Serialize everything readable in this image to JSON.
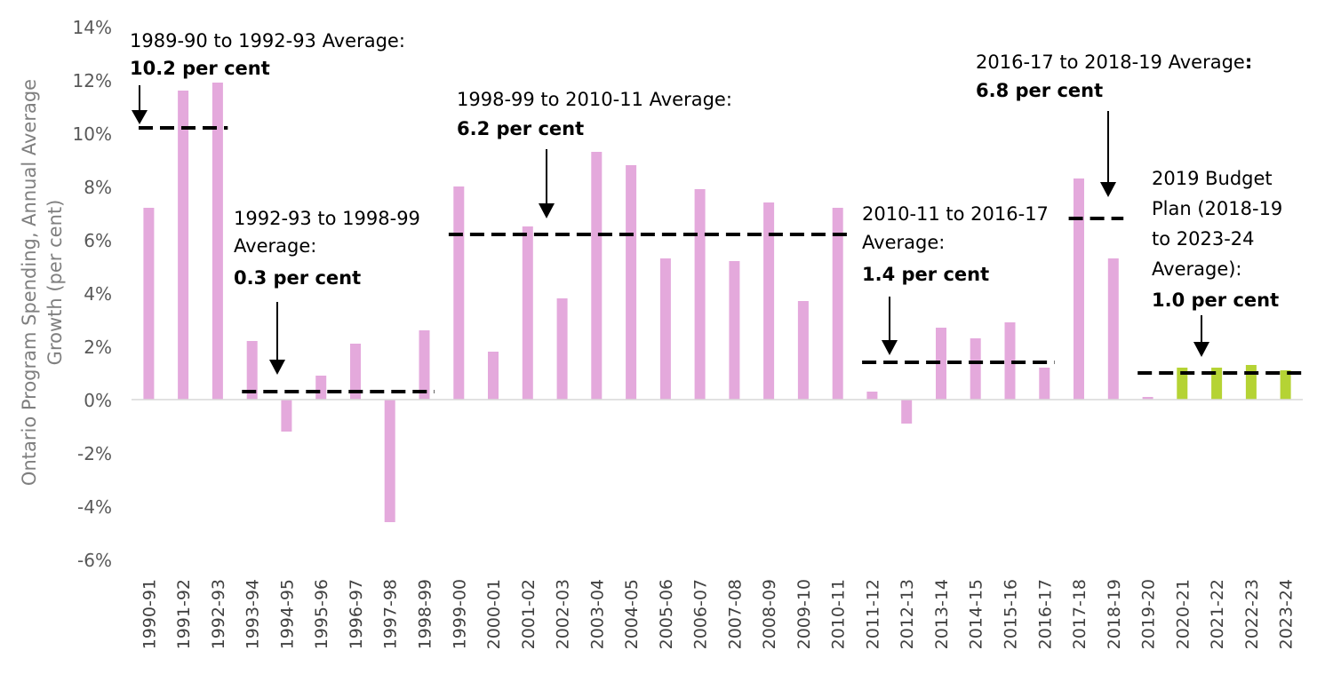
{
  "chart_data": {
    "type": "bar",
    "title": "",
    "xlabel": "",
    "ylabel_lines": [
      "Ontario Program Spending, Annual Average",
      "Growth (per cent)"
    ],
    "ylim": [
      -6,
      14
    ],
    "yticks": [
      "14%",
      "12%",
      "10%",
      "8%",
      "6%",
      "4%",
      "2%",
      "0%",
      "-2%",
      "-4%",
      "-6%"
    ],
    "ytick_values": [
      14,
      12,
      10,
      8,
      6,
      4,
      2,
      0,
      -2,
      -4,
      -6
    ],
    "grid": false,
    "colors": {
      "historical": "#e4a9dc",
      "projected": "#b5d334",
      "average": "#000000"
    },
    "categories": [
      "1990-91",
      "1991-92",
      "1992-93",
      "1993-94",
      "1994-95",
      "1995-96",
      "1996-97",
      "1997-98",
      "1998-99",
      "1999-00",
      "2000-01",
      "2001-02",
      "2002-03",
      "2003-04",
      "2004-05",
      "2005-06",
      "2006-07",
      "2007-08",
      "2008-09",
      "2009-10",
      "2010-11",
      "2011-12",
      "2012-13",
      "2013-14",
      "2014-15",
      "2015-16",
      "2016-17",
      "2017-18",
      "2018-19",
      "2019-20",
      "2020-21",
      "2021-22",
      "2022-23",
      "2023-24"
    ],
    "series": [
      {
        "values": [
          7.2,
          11.6,
          11.9,
          2.2,
          -1.2,
          0.9,
          2.1,
          -4.6,
          2.6,
          8.0,
          1.8,
          6.5,
          3.8,
          9.3,
          8.8,
          5.3,
          7.9,
          5.2,
          7.4,
          3.7,
          7.2,
          0.3,
          -0.9,
          2.7,
          2.3,
          2.9,
          1.2,
          8.3,
          5.3,
          0.1,
          1.2,
          1.2,
          1.3,
          1.1
        ]
      }
    ],
    "projected_start_index": 30,
    "averages": [
      {
        "from": 0,
        "to": 2,
        "value": 10.2,
        "label": "1989-90 to 1992-93 Average:",
        "value_text": "10.2 per cent"
      },
      {
        "from": 3,
        "to": 8,
        "value": 0.3,
        "label_lines": [
          "1992-93 to 1998-99",
          "Average:"
        ],
        "value_text": "0.3 per cent"
      },
      {
        "from": 9,
        "to": 20,
        "value": 6.2,
        "label": "1998-99 to 2010-11 Average:",
        "value_text": "6.2 per cent"
      },
      {
        "from": 21,
        "to": 26,
        "value": 1.4,
        "label_lines": [
          "2010-11 to 2016-17",
          "Average:"
        ],
        "value_text": "1.4 per cent"
      },
      {
        "from": 27,
        "to": 28,
        "value": 6.8,
        "label_main": "2016-17 to 2018-19 Average",
        "label_colon": ":",
        "value_text": "6.8 per cent"
      },
      {
        "from": 29,
        "to": 33,
        "value": 1.0,
        "label_lines": [
          "2019 Budget",
          "Plan (2018-19",
          "to 2023-24",
          "Average):"
        ],
        "value_text": "1.0 per cent"
      }
    ]
  }
}
